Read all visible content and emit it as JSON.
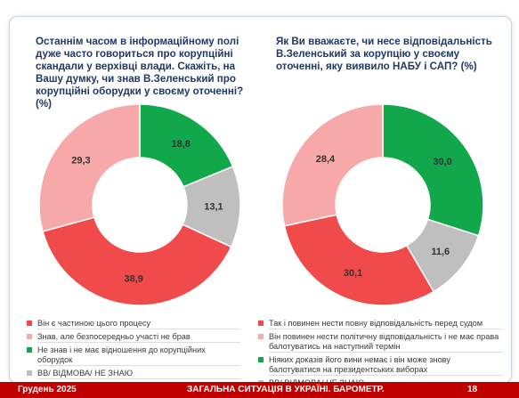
{
  "colors": {
    "red": "#f04a4a",
    "pink": "#f7a9a9",
    "green": "#10a84a",
    "grey": "#bfbfbf",
    "footer": "#c00000"
  },
  "question1": "Останнім часом в інформаційному полі дуже часто говориться про корупційні скандали у верхівці влади. Скажіть, на Вашу думку, чи знав В.Зеленський про корупційні оборудки у своєму оточенні? (%)",
  "question2": "Як Ви вважаєте, чи несе відповідальність В.Зеленський за корупцію у своєму оточенні, яку виявило НАБУ і САП? (%)",
  "chart_data": [
    {
      "type": "pie",
      "donut": true,
      "categories": [
        "Він є частиною цього процесу",
        "Знав, але безпосередньо участі не брав",
        "Не знав і не має відношення до корупційних оборудок",
        "ВВ/ ВІДМОВА/ НЕ ЗНАЮ"
      ],
      "values": [
        38.9,
        29.3,
        18.8,
        13.1
      ],
      "labels": [
        "38,9",
        "29,3",
        "18,8",
        "13,1"
      ],
      "colors": [
        "#f04a4a",
        "#f7a9a9",
        "#10a84a",
        "#bfbfbf"
      ]
    },
    {
      "type": "pie",
      "donut": true,
      "categories": [
        "Так і повинен нести повну відповідальність перед судом",
        "Він повинен нести політичну відповідальність і не має права балотуватись на наступний термін",
        "Ніяких доказів його вини немає і він може знову балотуватися на президентських виборах",
        "ВВ/ ВІДМОВА/ НЕ ЗНАЮ"
      ],
      "values": [
        30.1,
        28.4,
        30.0,
        11.6
      ],
      "labels": [
        "30,1",
        "28,4",
        "30,0",
        "11,6"
      ],
      "colors": [
        "#f04a4a",
        "#f7a9a9",
        "#10a84a",
        "#bfbfbf"
      ]
    }
  ],
  "footer": {
    "date": "Грудень 2025",
    "title": "ЗАГАЛЬНА СИТУАЦІЯ В УКРАЇНІ. БАРОМЕТР.",
    "page": "18"
  }
}
